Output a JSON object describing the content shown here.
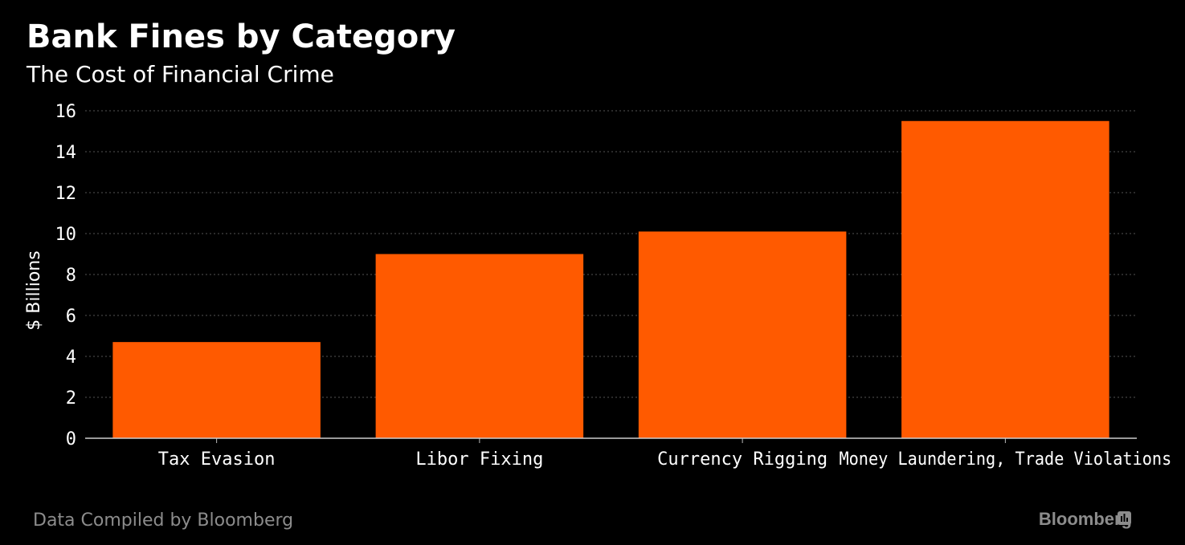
{
  "colors": {
    "background": "#000000",
    "bar": "#ff5a00",
    "text": "#ffffff",
    "grid": "#555555",
    "footer": "#8c8c8c"
  },
  "footer": {
    "source": "Data Compiled by Bloomberg",
    "brand": "Bloomberg",
    "brand_icon": "bloomberg-chart-icon"
  },
  "chart_data": {
    "type": "bar",
    "title": "Bank Fines by Category",
    "subtitle": "The Cost of Financial Crime",
    "xlabel": "",
    "ylabel": "$ Billions",
    "categories": [
      "Tax Evasion",
      "Libor Fixing",
      "Currency Rigging",
      "Money Laundering, Trade Violations"
    ],
    "values": [
      4.7,
      9.0,
      10.1,
      15.5
    ],
    "ylim": [
      0,
      16
    ],
    "yticks": [
      0,
      2,
      4,
      6,
      8,
      10,
      12,
      14,
      16
    ],
    "grid": true,
    "grid_style": "dotted",
    "legend": "none"
  }
}
